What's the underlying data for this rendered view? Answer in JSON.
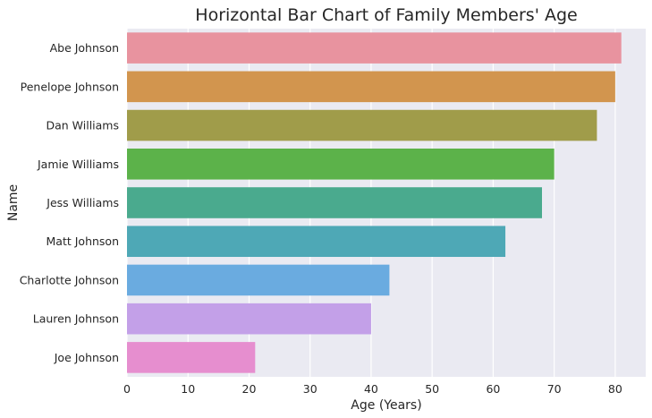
{
  "chart_data": {
    "type": "bar",
    "orientation": "horizontal",
    "title": "Horizontal Bar Chart of Family Members' Age",
    "xlabel": "Age (Years)",
    "ylabel": "Name",
    "xlim": [
      0,
      85
    ],
    "xticks": [
      0,
      10,
      20,
      30,
      40,
      50,
      60,
      70,
      80
    ],
    "grid": true,
    "background_color": "#eaeaf2",
    "categories": [
      "Abe Johnson",
      "Penelope Johnson",
      "Dan Williams",
      "Jamie Williams",
      "Jess Williams",
      "Matt Johnson",
      "Charlotte Johnson",
      "Lauren Johnson",
      "Joe Johnson"
    ],
    "values": [
      81,
      80,
      77,
      70,
      68,
      62,
      43,
      40,
      21
    ],
    "colors": [
      "#e8939f",
      "#d2954e",
      "#a09c4a",
      "#5cb24a",
      "#4aaa8e",
      "#4ea8b6",
      "#6aabe0",
      "#c3a0e8",
      "#e68ecf"
    ]
  }
}
